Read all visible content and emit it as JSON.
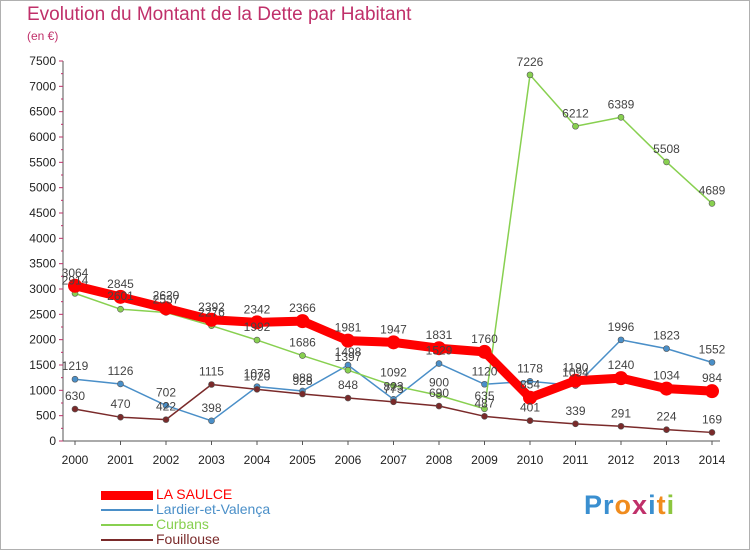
{
  "header": {
    "title": "Evolution du Montant de la Dette par Habitant",
    "subtitle": "(en €)"
  },
  "logo": {
    "letters": [
      {
        "char": "P",
        "color": "#3a8fd0"
      },
      {
        "char": "r",
        "color": "#3a8fd0"
      },
      {
        "char": "o",
        "color": "#f08c1e"
      },
      {
        "char": "x",
        "color": "#c0306a"
      },
      {
        "char": "i",
        "color": "#3a8fd0"
      },
      {
        "char": "t",
        "color": "#f08c1e"
      },
      {
        "char": "i",
        "color": "#8cc63f"
      }
    ]
  },
  "chart_data": {
    "type": "line",
    "title": "Evolution du Montant de la Dette par Habitant",
    "subtitle": "(en €)",
    "xlabel": "",
    "ylabel": "",
    "x": [
      "2000",
      "2001",
      "2002",
      "2003",
      "2004",
      "2005",
      "2006",
      "2007",
      "2008",
      "2009",
      "2010",
      "2011",
      "2012",
      "2013",
      "2014"
    ],
    "ylim": [
      0,
      7500
    ],
    "yticks": [
      0,
      500,
      1000,
      1500,
      2000,
      2500,
      3000,
      3500,
      4000,
      4500,
      5000,
      5500,
      6000,
      6500,
      7000,
      7500
    ],
    "grid": false,
    "legend_position": "bottom-left",
    "series": [
      {
        "name": "LA SAULCE",
        "color": "#ff0000",
        "emphasis": true,
        "values": [
          3064,
          2845,
          2620,
          2392,
          2342,
          2366,
          1981,
          1947,
          1831,
          1760,
          854,
          1190,
          1240,
          1034,
          984
        ],
        "labels": [
          "3064",
          "2845",
          "2620",
          "2392",
          "2342",
          "2366",
          "1981",
          "1947",
          "1831",
          "1760",
          "854",
          "1190",
          "1240",
          "1034",
          "984"
        ]
      },
      {
        "name": "Lardier-et-Valença",
        "color": "#4a8fc8",
        "values": [
          1219,
          1126,
          702,
          398,
          1073,
          988,
          1498,
          823,
          1529,
          1120,
          1178,
          1094,
          1996,
          1823,
          1552
        ],
        "labels": [
          "1219",
          "1126",
          "702",
          "398",
          "1073",
          "988",
          "1498",
          "823",
          "1529",
          "1120",
          "1178",
          "1094",
          "1996",
          "1823",
          "1552"
        ]
      },
      {
        "name": "Curbans",
        "color": "#88d050",
        "values": [
          2914,
          2601,
          2537,
          2276,
          1992,
          1686,
          1397,
          1092,
          900,
          635,
          7226,
          6212,
          6389,
          5508,
          4689
        ],
        "labels": [
          "2914",
          "2601",
          "2537",
          "2276",
          "1992",
          "1686",
          "1397",
          "1092",
          "900",
          "635",
          "7226",
          "6212",
          "6389",
          "5508",
          "4689"
        ]
      },
      {
        "name": "Fouillouse",
        "color": "#7a2a2a",
        "values": [
          630,
          470,
          422,
          1115,
          1020,
          928,
          848,
          773,
          690,
          487,
          401,
          339,
          291,
          224,
          169
        ],
        "labels": [
          "630",
          "470",
          "422",
          "1115",
          "1020",
          "928",
          "848",
          "773",
          "690",
          "487",
          "401",
          "339",
          "291",
          "224",
          "169"
        ]
      }
    ]
  }
}
